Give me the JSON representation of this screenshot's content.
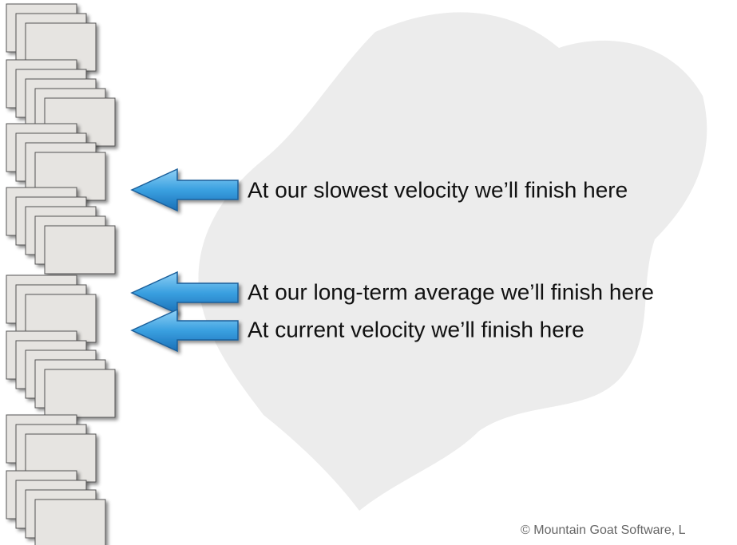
{
  "arrows": [
    {
      "label": "At our slowest velocity we’ll finish here"
    },
    {
      "label": "At our long-term average we’ll finish here"
    },
    {
      "label": "At current velocity we’ll finish here"
    }
  ],
  "copyright": "© Mountain Goat Software, L"
}
